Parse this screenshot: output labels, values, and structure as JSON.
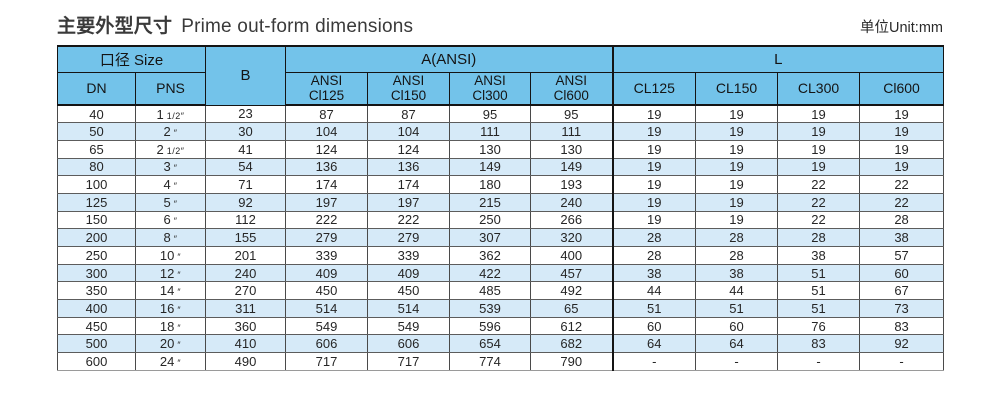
{
  "title": {
    "zh": "主要外型尺寸",
    "en": "Prime out-form dimensions"
  },
  "unit_label": "单位Unit:mm",
  "colors": {
    "header_blue": "#73C3EA",
    "row_alt_blue": "#D6EAF8",
    "border_dark": "#141414"
  },
  "table": {
    "group_headers": {
      "size": "口径 Size",
      "b": "B",
      "a": "A(ANSI)",
      "l": "L"
    },
    "sub_headers": {
      "dn": "DN",
      "pns": "PNS",
      "a_cols": [
        [
          "ANSI",
          "Cl125"
        ],
        [
          "ANSI",
          "Cl150"
        ],
        [
          "ANSI",
          "Cl300"
        ],
        [
          "ANSI",
          "Cl600"
        ]
      ],
      "l_cols": [
        "CL125",
        "CL150",
        "CL300",
        "Cl600"
      ]
    },
    "rows": [
      [
        "40",
        "1 1/2″",
        "23",
        "87",
        "87",
        "95",
        "95",
        "19",
        "19",
        "19",
        "19"
      ],
      [
        "50",
        "2″",
        "30",
        "104",
        "104",
        "111",
        "111",
        "19",
        "19",
        "19",
        "19"
      ],
      [
        "65",
        "2 1/2″",
        "41",
        "124",
        "124",
        "130",
        "130",
        "19",
        "19",
        "19",
        "19"
      ],
      [
        "80",
        "3″",
        "54",
        "136",
        "136",
        "149",
        "149",
        "19",
        "19",
        "19",
        "19"
      ],
      [
        "100",
        "4″",
        "71",
        "174",
        "174",
        "180",
        "193",
        "19",
        "19",
        "22",
        "22"
      ],
      [
        "125",
        "5″",
        "92",
        "197",
        "197",
        "215",
        "240",
        "19",
        "19",
        "22",
        "22"
      ],
      [
        "150",
        "6″",
        "112",
        "222",
        "222",
        "250",
        "266",
        "19",
        "19",
        "22",
        "28"
      ],
      [
        "200",
        "8″",
        "155",
        "279",
        "279",
        "307",
        "320",
        "28",
        "28",
        "28",
        "38"
      ],
      [
        "250",
        "10″",
        "201",
        "339",
        "339",
        "362",
        "400",
        "28",
        "28",
        "38",
        "57"
      ],
      [
        "300",
        "12″",
        "240",
        "409",
        "409",
        "422",
        "457",
        "38",
        "38",
        "51",
        "60"
      ],
      [
        "350",
        "14″",
        "270",
        "450",
        "450",
        "485",
        "492",
        "44",
        "44",
        "51",
        "67"
      ],
      [
        "400",
        "16″",
        "311",
        "514",
        "514",
        "539",
        "65",
        "51",
        "51",
        "51",
        "73"
      ],
      [
        "450",
        "18″",
        "360",
        "549",
        "549",
        "596",
        "612",
        "60",
        "60",
        "76",
        "83"
      ],
      [
        "500",
        "20″",
        "410",
        "606",
        "606",
        "654",
        "682",
        "64",
        "64",
        "83",
        "92"
      ],
      [
        "600",
        "24″",
        "490",
        "717",
        "717",
        "774",
        "790",
        "-",
        "-",
        "-",
        "-"
      ]
    ]
  }
}
